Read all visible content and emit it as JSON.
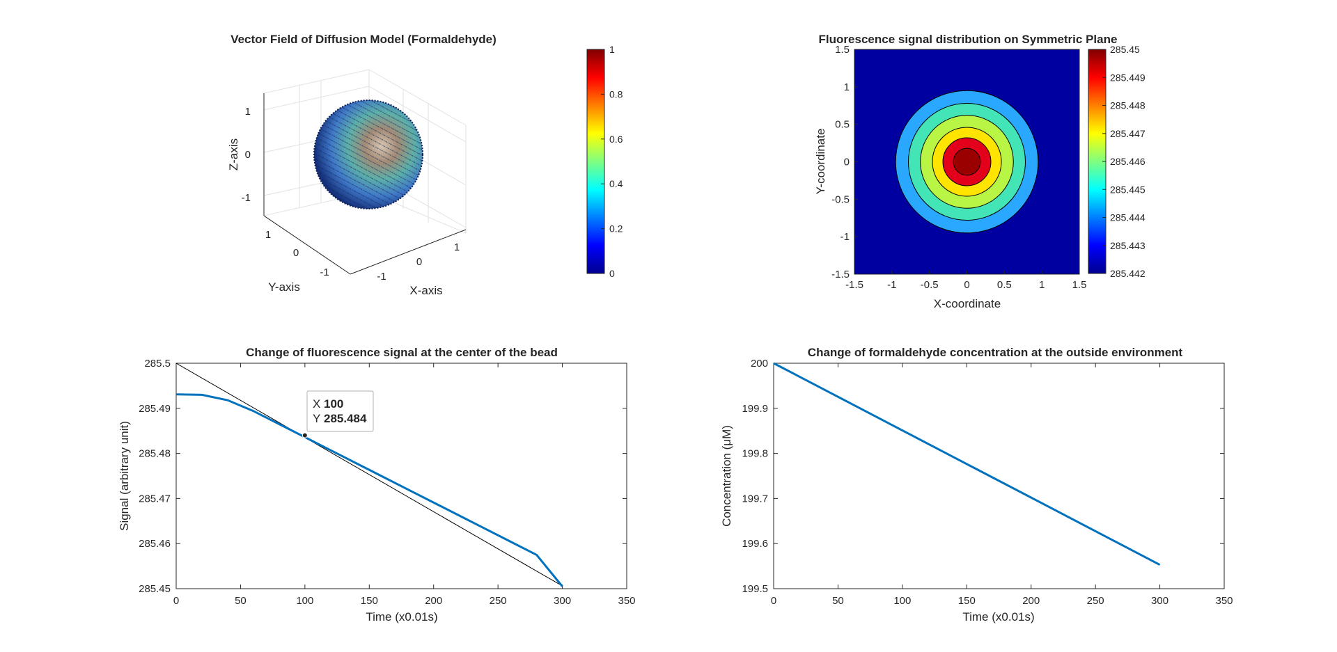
{
  "figure": {
    "background": "#ffffff",
    "axis_color": "#262626",
    "line_color": "#0072bd",
    "tip_color": "#0a8ad6"
  },
  "chart_data": [
    {
      "type": "scatter",
      "subtype": "3d-vector-field",
      "title": "Vector Field of Diffusion Model (Formaldehyde)",
      "xlabel": "X-axis",
      "ylabel": "Y-axis",
      "zlabel": "Z-axis",
      "xticks": [
        "-1",
        "0",
        "1"
      ],
      "yticks": [
        "-1",
        "0",
        "1"
      ],
      "zticks": [
        "-1",
        "0",
        "1"
      ],
      "xlim": [
        -1.5,
        1.5
      ],
      "ylim": [
        -1.5,
        1.5
      ],
      "zlim": [
        -1.5,
        1.5
      ],
      "sphere_radius": 1,
      "grid": true,
      "colormap": "jet",
      "colorbar": {
        "limits": [
          0,
          1
        ],
        "ticks": [
          "0",
          "0.2",
          "0.4",
          "0.6",
          "0.8",
          "1"
        ]
      }
    },
    {
      "type": "heatmap",
      "subtype": "filled-contour",
      "title": "Fluorescence signal distribution on Symmetric Plane",
      "xlabel": "X-coordinate",
      "ylabel": "Y-coordinate",
      "xlim": [
        -1.5,
        1.5
      ],
      "ylim": [
        -1.5,
        1.5
      ],
      "xticks": [
        "-1.5",
        "-1",
        "-0.5",
        "0",
        "0.5",
        "1",
        "1.5"
      ],
      "yticks": [
        "-1.5",
        "-1",
        "-0.5",
        "0",
        "0.5",
        "1",
        "1.5"
      ],
      "colormap": "jet",
      "contour_radii": [
        0.95,
        0.78,
        0.62,
        0.46,
        0.18
      ],
      "contour_colors": [
        "#2aa8ff",
        "#43e5b6",
        "#b9f545",
        "#ffe400",
        "#ff7f00"
      ],
      "outer_fill": "#0000a0",
      "peak_fill": "#9a0000",
      "center_fill": "#e3001a",
      "colorbar": {
        "limits": [
          285.442,
          285.45
        ],
        "ticks": [
          "285.442",
          "285.443",
          "285.444",
          "285.445",
          "285.446",
          "285.447",
          "285.448",
          "285.449",
          "285.45"
        ]
      }
    },
    {
      "type": "line",
      "title": "Change of fluorescence signal at the center of the bead",
      "xlabel": "Time (x0.01s)",
      "ylabel": "Signal (arbitrary unit)",
      "xlim": [
        0,
        350
      ],
      "ylim": [
        285.45,
        285.5
      ],
      "xticks": [
        "0",
        "50",
        "100",
        "150",
        "200",
        "250",
        "300",
        "350"
      ],
      "yticks": [
        "285.45",
        "285.46",
        "285.47",
        "285.48",
        "285.49",
        "285.5"
      ],
      "x": [
        0,
        20,
        40,
        60,
        80,
        100,
        120,
        140,
        160,
        180,
        200,
        220,
        240,
        260,
        280,
        300
      ],
      "y": [
        285.4931,
        285.493,
        285.4918,
        285.4894,
        285.4865,
        285.4836,
        285.4807,
        285.4778,
        285.4749,
        285.472,
        285.4691,
        285.4662,
        285.4633,
        285.4604,
        285.4575,
        285.4505
      ],
      "tangent": {
        "x": [
          0,
          300
        ],
        "y": [
          285.5,
          285.4506
        ]
      },
      "datatip": {
        "x_label": "X",
        "x_value": "100",
        "y_label": "Y",
        "y_value": "285.484",
        "at_x": 100,
        "at_y": 285.484
      }
    },
    {
      "type": "line",
      "title": "Change of formaldehyde concentration at the outside environment",
      "xlabel": "Time (x0.01s)",
      "ylabel": "Concentration (μM)",
      "xlim": [
        0,
        350
      ],
      "ylim": [
        199.5,
        200
      ],
      "xticks": [
        "0",
        "50",
        "100",
        "150",
        "200",
        "250",
        "300",
        "350"
      ],
      "yticks": [
        "199.5",
        "199.6",
        "199.7",
        "199.8",
        "199.9",
        "200"
      ],
      "x": [
        0,
        300
      ],
      "y": [
        200,
        199.553
      ]
    }
  ]
}
